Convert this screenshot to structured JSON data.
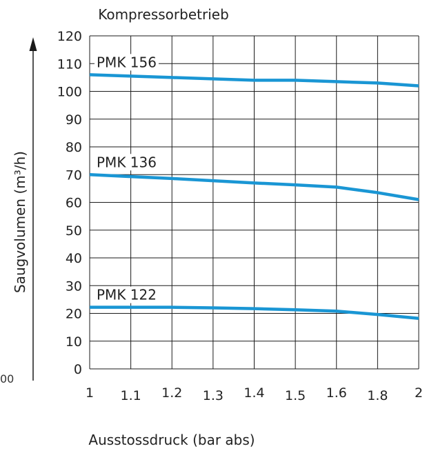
{
  "chart_data": {
    "type": "line",
    "title": "Kompressorbetrieb",
    "xlabel": "Ausstossdruck (bar abs)",
    "ylabel": "Saugvolumen (m³/h)",
    "x_ticks": [
      "1",
      "1.1",
      "1.2",
      "1.3",
      "1.4",
      "1.5",
      "1.6",
      "1.8",
      "2"
    ],
    "y_ticks": [
      "0",
      "10",
      "20",
      "30",
      "40",
      "50",
      "60",
      "70",
      "80",
      "90",
      "100",
      "110",
      "120"
    ],
    "ylim": [
      0,
      120
    ],
    "grid": true,
    "categories": [
      "1",
      "1.1",
      "1.2",
      "1.3",
      "1.4",
      "1.5",
      "1.6",
      "1.8",
      "2"
    ],
    "series": [
      {
        "name": "PMK 156",
        "values": [
          106,
          105.5,
          105,
          104.5,
          104,
          104,
          103.5,
          103,
          102
        ]
      },
      {
        "name": "PMK 136",
        "values": [
          70,
          69.3,
          68.6,
          67.8,
          67,
          66.3,
          65.5,
          63.5,
          61
        ]
      },
      {
        "name": "PMK 122",
        "values": [
          22.2,
          22.2,
          22.2,
          22,
          21.7,
          21.3,
          20.8,
          19.6,
          18.2
        ]
      }
    ],
    "colors": {
      "series": "#1a96d4",
      "grid": "#1a1a1a"
    }
  },
  "stray_text": "00"
}
